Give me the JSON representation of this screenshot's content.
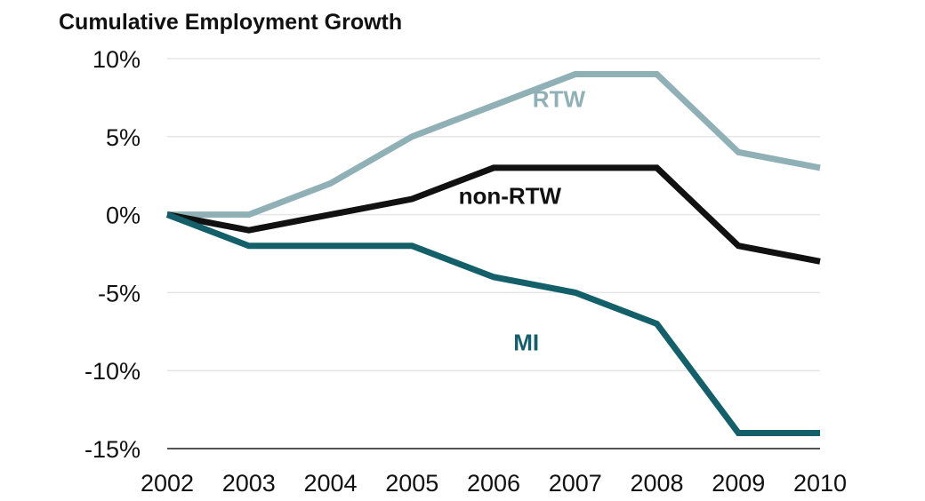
{
  "chart_data": {
    "type": "line",
    "title": "Cumulative Employment Growth",
    "xlabel": "",
    "ylabel": "",
    "x": [
      2002,
      2003,
      2004,
      2005,
      2006,
      2007,
      2008,
      2009,
      2010
    ],
    "x_tick_labels": [
      "2002",
      "2003",
      "2004",
      "2005",
      "2006",
      "2007",
      "2008",
      "2009",
      "2010"
    ],
    "y_tick_values": [
      10,
      5,
      0,
      -5,
      -10,
      -15
    ],
    "y_tick_labels": [
      "10%",
      "5%",
      "0%",
      "-5%",
      "-10%",
      "-15%"
    ],
    "ylim": [
      -15,
      10
    ],
    "grid": true,
    "series": [
      {
        "name": "RTW",
        "color": "#8fb1b5",
        "values": [
          0,
          0,
          2,
          5,
          7,
          9,
          9,
          4,
          3
        ]
      },
      {
        "name": "non-RTW",
        "color": "#111111",
        "values": [
          0,
          -1,
          0,
          1,
          3,
          3,
          3,
          -2,
          -3
        ]
      },
      {
        "name": "MI",
        "color": "#13606a",
        "values": [
          0,
          -2,
          -2,
          -2,
          -4,
          -5,
          -7,
          -14,
          -14
        ]
      }
    ],
    "annotations": [
      {
        "text": "RTW",
        "series": "RTW",
        "x": 2006.8,
        "y": 7.4
      },
      {
        "text": "non-RTW",
        "series": "non-RTW",
        "x": 2006.2,
        "y": 1.2
      },
      {
        "text": "MI",
        "series": "MI",
        "x": 2006.4,
        "y": -8.2
      }
    ]
  }
}
